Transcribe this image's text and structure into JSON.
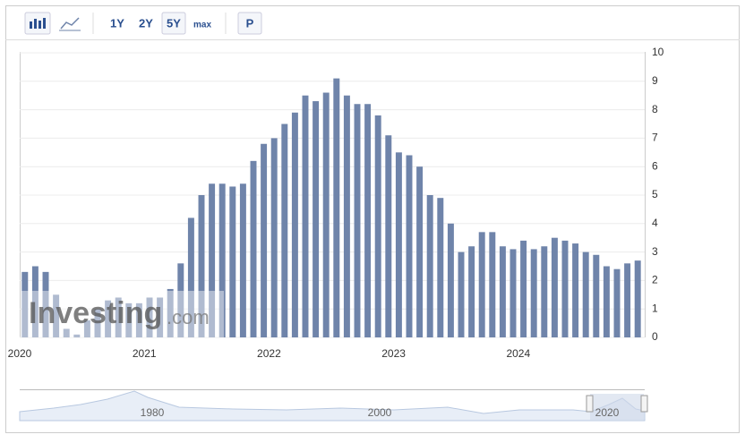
{
  "toolbar": {
    "ranges": [
      "1Y",
      "2Y",
      "5Y",
      "max"
    ],
    "extra": "P"
  },
  "watermark": {
    "brand": "Investing",
    "suffix": ".com"
  },
  "navigator": {
    "labels": [
      "1980",
      "2000",
      "2020"
    ]
  },
  "chart_data": {
    "type": "bar",
    "color": "#6f84aa",
    "categories": [
      "2020",
      null,
      null,
      null,
      null,
      null,
      null,
      null,
      null,
      null,
      null,
      null,
      "2021",
      null,
      null,
      null,
      null,
      null,
      null,
      null,
      null,
      null,
      null,
      null,
      "2022",
      null,
      null,
      null,
      null,
      null,
      null,
      null,
      null,
      null,
      null,
      null,
      "2023",
      null,
      null,
      null,
      null,
      null,
      null,
      null,
      null,
      null,
      null,
      null,
      "2024",
      null,
      null,
      null,
      null,
      null,
      null,
      null,
      null,
      null,
      null,
      null
    ],
    "values": [
      2.3,
      2.5,
      2.3,
      1.5,
      0.3,
      0.1,
      0.6,
      1.0,
      1.3,
      1.4,
      1.2,
      1.2,
      1.4,
      1.4,
      1.7,
      2.6,
      4.2,
      5.0,
      5.4,
      5.4,
      5.3,
      5.4,
      6.2,
      6.8,
      7.0,
      7.5,
      7.9,
      8.5,
      8.3,
      8.6,
      9.1,
      8.5,
      8.2,
      8.2,
      7.8,
      7.1,
      6.5,
      6.4,
      6.0,
      5.0,
      4.9,
      4.0,
      3.0,
      3.2,
      3.7,
      3.7,
      3.2,
      3.1,
      3.4,
      3.1,
      3.2,
      3.5,
      3.4,
      3.3,
      3.0,
      2.9,
      2.5,
      2.4,
      2.6,
      2.7
    ],
    "ylim": [
      0,
      10
    ],
    "yticks": [
      0,
      1,
      2,
      3,
      4,
      5,
      6,
      7,
      8,
      9,
      10
    ],
    "grid": true
  }
}
